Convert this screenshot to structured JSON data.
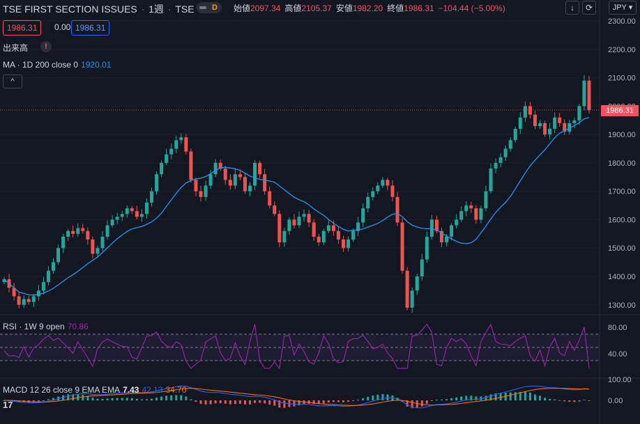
{
  "header": {
    "symbol": "TSE FIRST SECTION ISSUES",
    "interval": "1週",
    "exchange": "TSE",
    "data_flag": "D",
    "ohlc": [
      {
        "k": "始値",
        "v": "2097.34"
      },
      {
        "k": "高値",
        "v": "2105.37"
      },
      {
        "k": "安値",
        "v": "1982.20"
      },
      {
        "k": "終値",
        "v": "1986.31"
      }
    ],
    "change": "−104.44 (−5.00%)",
    "currency": "JPY",
    "down_icon": "arrow-down-icon",
    "refresh_icon": "refresh-icon"
  },
  "badges": {
    "sell": "1986.31",
    "spread": "0.00",
    "buy": "1986.31"
  },
  "volume": {
    "label": "出来高",
    "warn": "!"
  },
  "ma": {
    "label": "MA · 1D 200 close 0",
    "value": "1920.01"
  },
  "collapse_icon": "^",
  "price_axis": {
    "ticks": [
      "2300.00",
      "2200.00",
      "2100.00",
      "2000.00",
      "1900.00",
      "1800.00",
      "1700.00",
      "1600.00",
      "1500.00",
      "1400.00",
      "1300.00"
    ],
    "last": "1986.31"
  },
  "rsi": {
    "label": "RSI · 1W 9 open",
    "value": "70.86",
    "ticks": [
      "80.00",
      "40.00"
    ]
  },
  "macd": {
    "label": "MACD 12 26 close 9 EMA EMA",
    "macd": "7.43",
    "signal": "42.13",
    "hist": "34.70",
    "ticks": [
      "100.00",
      "0.00"
    ]
  },
  "logo": "17",
  "colors": {
    "up": "#26a69a",
    "down": "#ef5350",
    "ma": "#2196f3",
    "rsi": "#9c27b0",
    "macd": "#2962ff",
    "signal": "#ff6d00",
    "bg": "#131722"
  },
  "chart_data": {
    "type": "candlestick",
    "ylim": [
      1270,
      2320
    ],
    "close_series": [
      1390,
      1360,
      1330,
      1300,
      1320,
      1310,
      1330,
      1350,
      1380,
      1420,
      1450,
      1500,
      1540,
      1560,
      1550,
      1570,
      1560,
      1530,
      1480,
      1500,
      1540,
      1580,
      1600,
      1610,
      1620,
      1640,
      1630,
      1610,
      1620,
      1660,
      1700,
      1760,
      1800,
      1830,
      1850,
      1880,
      1890,
      1840,
      1740,
      1700,
      1680,
      1720,
      1760,
      1800,
      1780,
      1740,
      1720,
      1760,
      1750,
      1700,
      1720,
      1800,
      1760,
      1700,
      1650,
      1620,
      1520,
      1560,
      1600,
      1580,
      1610,
      1620,
      1590,
      1540,
      1520,
      1560,
      1580,
      1560,
      1530,
      1500,
      1530,
      1560,
      1590,
      1640,
      1680,
      1700,
      1720,
      1740,
      1720,
      1680,
      1590,
      1420,
      1290,
      1350,
      1400,
      1460,
      1540,
      1600,
      1560,
      1520,
      1540,
      1580,
      1600,
      1630,
      1650,
      1640,
      1600,
      1640,
      1700,
      1780,
      1800,
      1820,
      1850,
      1880,
      1920,
      1960,
      2000,
      1970,
      1930,
      1940,
      1900,
      1920,
      1960,
      1940,
      1910,
      1940,
      1950,
      2000,
      2090,
      1986
    ]
  }
}
